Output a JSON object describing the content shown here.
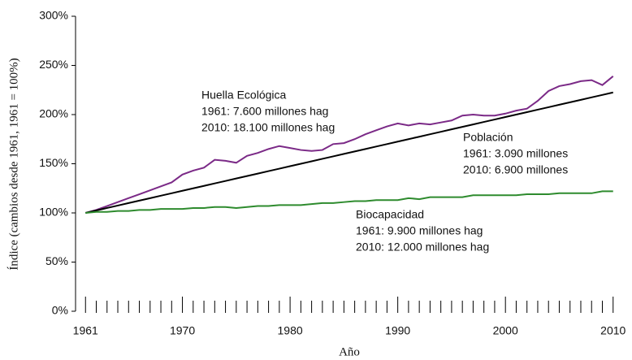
{
  "chart_data": {
    "type": "line",
    "x_label": "Año",
    "y_label": "Índice (cambios desde 1961, 1961 = 100%)",
    "x": [
      1961,
      1962,
      1963,
      1964,
      1965,
      1966,
      1967,
      1968,
      1969,
      1970,
      1971,
      1972,
      1973,
      1974,
      1975,
      1976,
      1977,
      1978,
      1979,
      1980,
      1981,
      1982,
      1983,
      1984,
      1985,
      1986,
      1987,
      1988,
      1989,
      1990,
      1991,
      1992,
      1993,
      1994,
      1995,
      1996,
      1997,
      1998,
      1999,
      2000,
      2001,
      2002,
      2003,
      2004,
      2005,
      2006,
      2007,
      2008,
      2009,
      2010
    ],
    "series": [
      {
        "name": "Huella Ecológica",
        "color": "#7b2a87",
        "values": [
          100,
          103,
          107,
          111,
          115,
          119,
          123,
          127,
          131,
          139,
          143,
          146,
          154,
          153,
          151,
          158,
          161,
          165,
          168,
          166,
          164,
          163,
          164,
          170,
          171,
          175,
          180,
          184,
          188,
          191,
          189,
          191,
          190,
          192,
          194,
          199,
          200,
          199,
          199,
          201,
          204,
          206,
          214,
          224,
          229,
          231,
          234,
          235,
          230,
          239
        ]
      },
      {
        "name": "Población",
        "color": "#000000",
        "values": [
          100,
          102.5,
          105,
          107.5,
          110,
          112.5,
          115,
          117.5,
          120,
          122.5,
          125,
          127.5,
          130,
          132.5,
          135,
          137.5,
          140,
          142.5,
          145,
          147.5,
          150,
          152.5,
          155,
          157.5,
          160,
          162.5,
          165,
          167.5,
          170,
          172.5,
          175,
          177.5,
          180,
          182.5,
          185,
          187.5,
          190,
          192.5,
          195,
          197.5,
          200,
          202.5,
          205,
          207.5,
          210,
          212.5,
          215,
          217.5,
          220,
          222.5
        ]
      },
      {
        "name": "Biocapacidad",
        "color": "#2e8b2e",
        "values": [
          100,
          101,
          101,
          102,
          102,
          103,
          103,
          104,
          104,
          104,
          105,
          105,
          106,
          106,
          105,
          106,
          107,
          107,
          108,
          108,
          108,
          109,
          110,
          110,
          111,
          112,
          112,
          113,
          113,
          113,
          115,
          114,
          116,
          116,
          116,
          116,
          118,
          118,
          118,
          118,
          118,
          119,
          119,
          119,
          120,
          120,
          120,
          120,
          122,
          122
        ]
      }
    ],
    "annotations": [
      [
        "Huella Ecológica",
        "1961: 7.600 millones hag",
        "2010: 18.100 millones hag"
      ],
      [
        "Población",
        "1961: 3.090 millones",
        "2010: 6.900 millones"
      ],
      [
        "Biocapacidad",
        "1961: 9.900 millones hag",
        "2010: 12.000 millones hag"
      ]
    ],
    "xlim": [
      1960,
      2011
    ],
    "xticks": [
      1961,
      1970,
      1980,
      1990,
      2000,
      2010
    ],
    "xminorticks": [
      1962,
      1963,
      1964,
      1965,
      1966,
      1967,
      1968,
      1969,
      1971,
      1972,
      1973,
      1974,
      1975,
      1976,
      1977,
      1978,
      1979,
      1981,
      1982,
      1983,
      1984,
      1985,
      1986,
      1987,
      1988,
      1989,
      1991,
      1992,
      1993,
      1994,
      1995,
      1996,
      1997,
      1998,
      1999,
      2001,
      2002,
      2003,
      2004,
      2005,
      2006,
      2007,
      2008,
      2009
    ],
    "ylim": [
      0,
      300
    ],
    "yticks": [
      {
        "value": 0,
        "label": "0%"
      },
      {
        "value": 50,
        "label": "50%"
      },
      {
        "value": 100,
        "label": "100%"
      },
      {
        "value": 150,
        "label": "150%"
      },
      {
        "value": 200,
        "label": "200%"
      },
      {
        "value": 250,
        "label": "250%"
      },
      {
        "value": 300,
        "label": "300%"
      }
    ]
  }
}
